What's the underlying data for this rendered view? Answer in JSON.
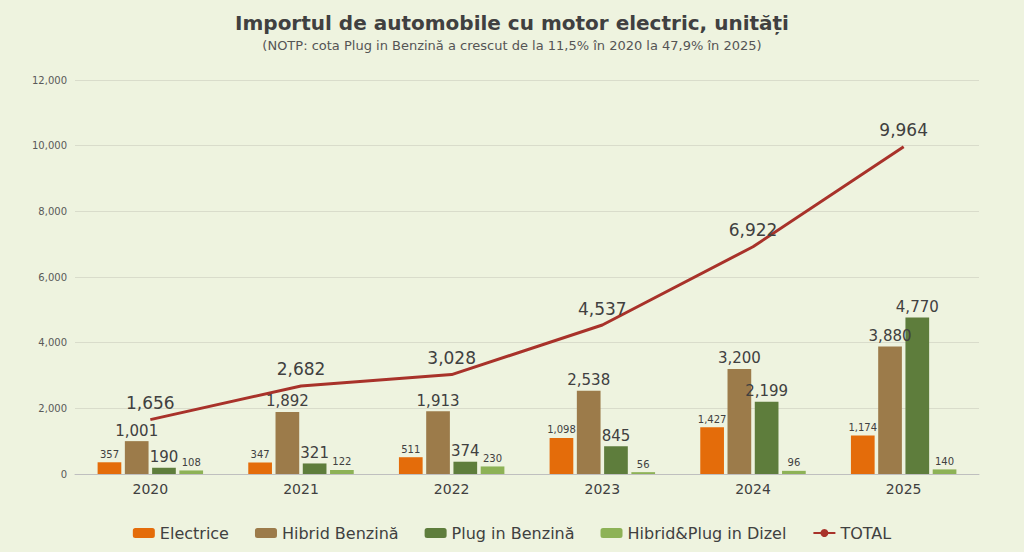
{
  "chart_data": {
    "type": "bar",
    "title": "Importul de automobile cu motor electric, unități",
    "subtitle": "(NOTP: cota Plug in Benzină a crescut de la 11,5% în 2020 la 47,9% în 2025)",
    "categories": [
      "2020",
      "2021",
      "2022",
      "2023",
      "2024",
      "2025"
    ],
    "series": [
      {
        "name": "Electrice",
        "color": "#e46c0a",
        "values": [
          357,
          347,
          511,
          1098,
          1427,
          1174
        ],
        "value_labels": [
          "357",
          "347",
          "511",
          "1,098",
          "1,427",
          "1,174"
        ]
      },
      {
        "name": "Hibrid Benzină",
        "color": "#9c7b4a",
        "values": [
          1001,
          1892,
          1913,
          2538,
          3200,
          3880
        ],
        "value_labels": [
          "1,001",
          "1,892",
          "1,913",
          "2,538",
          "3,200",
          "3,880"
        ]
      },
      {
        "name": "Plug in Benzină",
        "color": "#5e7d3c",
        "values": [
          190,
          321,
          374,
          845,
          2199,
          4770
        ],
        "value_labels": [
          "190",
          "321",
          "374",
          "845",
          "2,199",
          "4,770"
        ]
      },
      {
        "name": "Hibrid&Plug in Dizel",
        "color": "#8db256",
        "values": [
          108,
          122,
          230,
          56,
          96,
          140
        ],
        "value_labels": [
          "108",
          "122",
          "230",
          "56",
          "96",
          "140"
        ]
      },
      {
        "name": "TOTAL",
        "type": "line",
        "color": "#a8322a",
        "values": [
          1656,
          2682,
          3028,
          4537,
          6922,
          9964
        ],
        "value_labels": [
          "1,656",
          "2,682",
          "3,028",
          "4,537",
          "6,922",
          "9,964"
        ]
      }
    ],
    "ylim": [
      0,
      12000
    ],
    "yticks": [
      0,
      {
        "value": 2000,
        "label": "2,000"
      },
      {
        "value": 4000,
        "label": "4,000"
      },
      {
        "value": 6000,
        "label": "6,000"
      },
      {
        "value": 8000,
        "label": "8,000"
      },
      {
        "value": 10000,
        "label": "10,000"
      },
      {
        "value": 12000,
        "label": "12,000"
      }
    ],
    "grid": true,
    "legend": "bottom",
    "data_labels": true
  }
}
